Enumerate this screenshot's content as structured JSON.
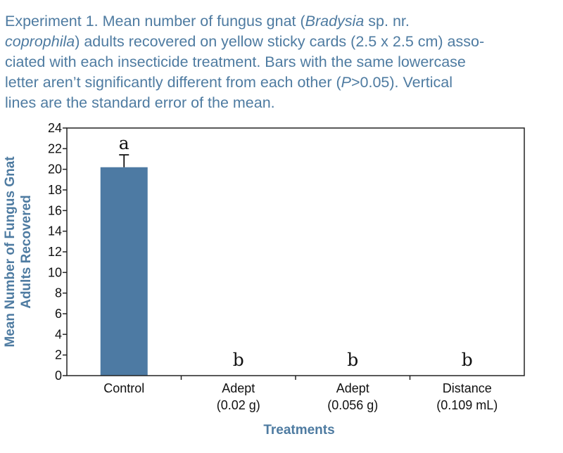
{
  "caption": {
    "t1": "Experiment 1. Mean number of fungus gnat (",
    "t2": "Bradysia",
    "t3": " sp. nr.",
    "t4": "coprophila",
    "t5": ") adults recovered on yellow sticky cards (2.5 x 2.5 cm) asso-",
    "t6": "ciated with each insecticide treatment. Bars with the same lowercase",
    "t7": "letter aren’t significantly different from each other (",
    "t8": "P",
    "t9": ">0.05). Vertical",
    "t10": "lines are the standard error of the mean."
  },
  "chart_data": {
    "type": "bar",
    "title": "",
    "xlabel": "Treatments",
    "ylabel_line1": "Mean Number of Fungus Gnat",
    "ylabel_line2": "Adults Recovered",
    "ylim": [
      0,
      24
    ],
    "yticks": [
      "0",
      "2",
      "4",
      "6",
      "8",
      "10",
      "12",
      "14",
      "16",
      "18",
      "20",
      "22",
      "24"
    ],
    "categories": [
      {
        "line1": "Control",
        "line2": ""
      },
      {
        "line1": "Adept",
        "line2": "(0.02 g)"
      },
      {
        "line1": "Adept",
        "line2": "(0.056 g)"
      },
      {
        "line1": "Distance",
        "line2": "(0.109 mL)"
      }
    ],
    "values": [
      20.2,
      0,
      0,
      0
    ],
    "errors": [
      1.2,
      0,
      0,
      0
    ],
    "significance_letters": [
      "a",
      "b",
      "b",
      "b"
    ],
    "bar_color": "#4d7aa3",
    "accent_color": "#4e7ba1"
  }
}
